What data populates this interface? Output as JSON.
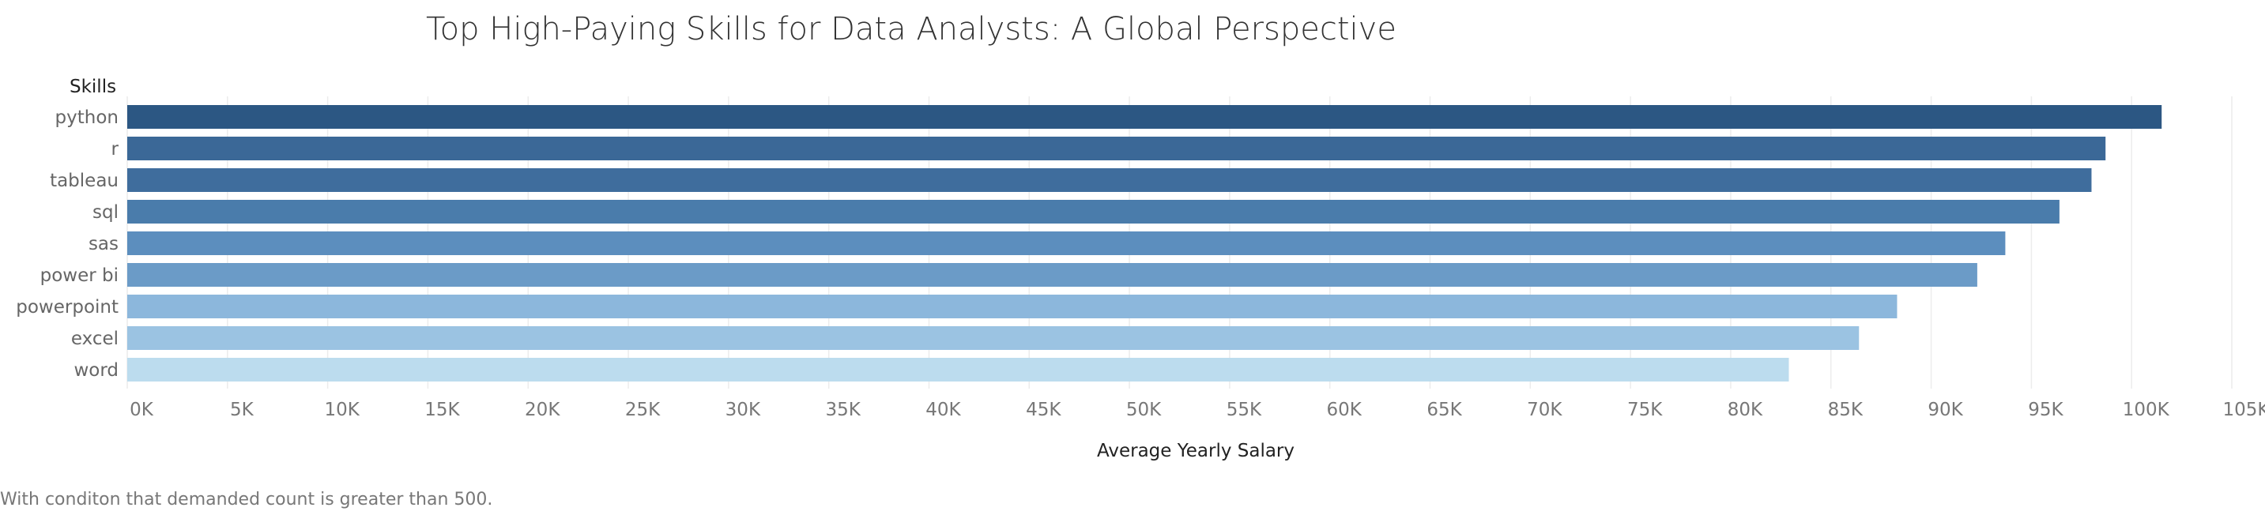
{
  "chart_data": {
    "type": "bar",
    "orientation": "horizontal",
    "title": "Top High-Paying Skills for Data Analysts: A Global Perspective",
    "ylabel": "Skills",
    "xlabel": "Average Yearly Salary",
    "categories": [
      "python",
      "r",
      "tableau",
      "sql",
      "sas",
      "power bi",
      "powerpoint",
      "excel",
      "word"
    ],
    "values": [
      101500,
      98700,
      98000,
      96400,
      93700,
      92300,
      88300,
      86400,
      82900
    ],
    "xlim": [
      0,
      105000
    ],
    "x_ticks": [
      0,
      5000,
      10000,
      15000,
      20000,
      25000,
      30000,
      35000,
      40000,
      45000,
      50000,
      55000,
      60000,
      65000,
      70000,
      75000,
      80000,
      85000,
      90000,
      95000,
      100000,
      105000
    ],
    "x_tick_labels": [
      "0K",
      "5K",
      "10K",
      "15K",
      "20K",
      "25K",
      "30K",
      "35K",
      "40K",
      "45K",
      "50K",
      "55K",
      "60K",
      "65K",
      "70K",
      "75K",
      "80K",
      "85K",
      "90K",
      "95K",
      "100K",
      "105K"
    ],
    "grid": "vertical",
    "bar_colors": [
      "#2c5783",
      "#3b6897",
      "#3f6d9d",
      "#4a7cab",
      "#5c8ebe",
      "#6b9bc7",
      "#8cb7dc",
      "#9bc3e2",
      "#bcdcee"
    ],
    "footnote": "With conditon that demanded count is greater than 500."
  }
}
